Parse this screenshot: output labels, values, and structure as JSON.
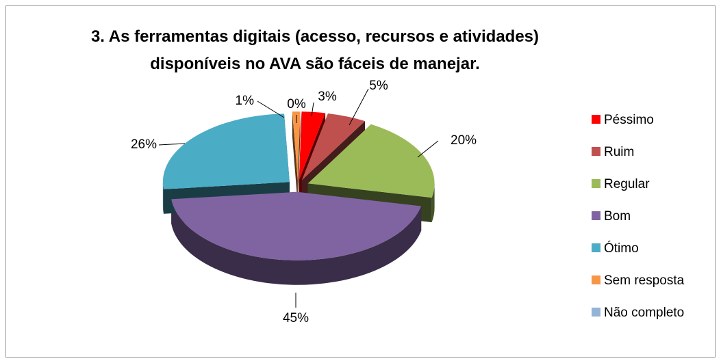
{
  "chart_data": {
    "type": "pie3d",
    "title": "3. As ferramentas digitais (acesso, recursos e atividades) disponíveis no AVA são fáceis de manejar.",
    "categories": [
      "Péssimo",
      "Ruim",
      "Regular",
      "Bom",
      "Ótimo",
      "Sem resposta",
      "Não completo"
    ],
    "values": [
      3,
      5,
      20,
      45,
      26,
      1,
      0
    ],
    "value_labels": [
      "3%",
      "5%",
      "20%",
      "45%",
      "26%",
      "1%",
      "0%"
    ],
    "colors": [
      "#ff0000",
      "#c0504d",
      "#9bbb59",
      "#8064a2",
      "#4bacc6",
      "#f79646",
      "#95b3d7"
    ],
    "legend": "right"
  }
}
